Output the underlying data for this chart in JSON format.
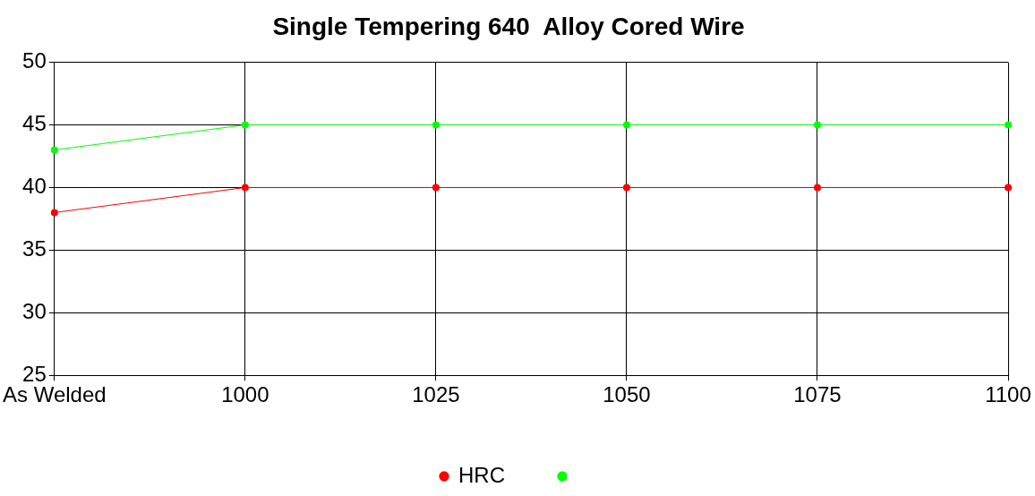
{
  "chart_data": {
    "type": "line",
    "title": "Single Tempering 640  Alloy Cored Wire",
    "categories": [
      "As Welded",
      "1000",
      "1025",
      "1050",
      "1075",
      "1100"
    ],
    "series": [
      {
        "name": "HRC",
        "color": "#ff0000",
        "values": [
          38,
          40,
          40,
          40,
          40,
          40
        ]
      },
      {
        "color": "#00ff00",
        "values": [
          43,
          45,
          45,
          45,
          45,
          45
        ]
      }
    ],
    "ylim": [
      25,
      50
    ],
    "yticks": [
      25,
      30,
      35,
      40,
      45,
      50
    ],
    "grid": true,
    "legend": "bottom",
    "marker": "circle",
    "line_style": "solid"
  }
}
